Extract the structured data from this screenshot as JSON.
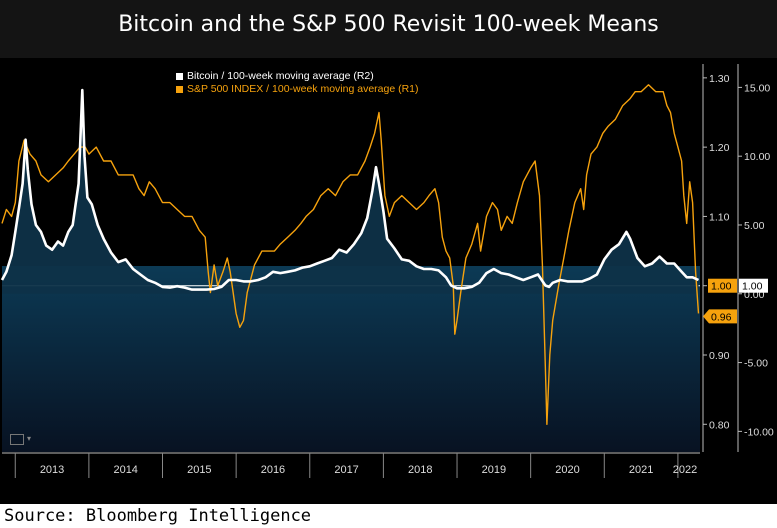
{
  "title": "Bitcoin and the S&P 500 Revisit 100-week Means",
  "source": "Source: Bloomberg Intelligence",
  "chart_data": {
    "type": "line",
    "title": "Bitcoin and the S&P 500 Revisit 100-week Means",
    "x_labels": [
      "2013",
      "2014",
      "2015",
      "2016",
      "2017",
      "2018",
      "2019",
      "2020",
      "2021",
      "2022"
    ],
    "xlim": [
      2012.82,
      2022.3
    ],
    "right_axis_inner": {
      "label": "R1",
      "ticks": [
        1.3,
        1.2,
        1.1,
        1.0,
        0.9,
        0.8
      ],
      "tick_labels": [
        "1.30",
        "1.20",
        "1.10",
        "1.00",
        "0.90",
        "0.80"
      ],
      "ylim": [
        0.76,
        1.32
      ]
    },
    "right_axis_outer": {
      "label": "R2",
      "ticks": [
        15,
        10,
        5,
        0,
        -5,
        -10
      ],
      "tick_labels": [
        "15.00",
        "10.00",
        "5.00",
        "0.00",
        "-5.00",
        "-10.00"
      ],
      "ylim": [
        -11.5,
        16.7
      ]
    },
    "series": [
      {
        "name": "Bitcoin / 100-week moving average (R2)",
        "axis": "R2",
        "color": "#ffffff",
        "fill": "#0e3148",
        "last_value_label": "1.00",
        "points": [
          [
            2012.82,
            1.0
          ],
          [
            2012.88,
            1.6
          ],
          [
            2012.95,
            2.8
          ],
          [
            2013.0,
            4.5
          ],
          [
            2013.05,
            6.2
          ],
          [
            2013.1,
            8.0
          ],
          [
            2013.14,
            11.2
          ],
          [
            2013.17,
            9.0
          ],
          [
            2013.22,
            6.5
          ],
          [
            2013.28,
            5.0
          ],
          [
            2013.35,
            4.5
          ],
          [
            2013.42,
            3.5
          ],
          [
            2013.5,
            3.2
          ],
          [
            2013.58,
            3.8
          ],
          [
            2013.65,
            3.5
          ],
          [
            2013.72,
            4.5
          ],
          [
            2013.78,
            5.0
          ],
          [
            2013.82,
            6.5
          ],
          [
            2013.86,
            8.0
          ],
          [
            2013.89,
            12.0
          ],
          [
            2013.91,
            14.8
          ],
          [
            2013.94,
            10.0
          ],
          [
            2013.98,
            7.0
          ],
          [
            2014.04,
            6.5
          ],
          [
            2014.12,
            5.0
          ],
          [
            2014.2,
            4.0
          ],
          [
            2014.3,
            3.0
          ],
          [
            2014.4,
            2.3
          ],
          [
            2014.5,
            2.5
          ],
          [
            2014.6,
            1.8
          ],
          [
            2014.7,
            1.4
          ],
          [
            2014.8,
            1.0
          ],
          [
            2014.9,
            0.8
          ],
          [
            2015.0,
            0.5
          ],
          [
            2015.1,
            0.45
          ],
          [
            2015.2,
            0.55
          ],
          [
            2015.3,
            0.45
          ],
          [
            2015.4,
            0.3
          ],
          [
            2015.5,
            0.3
          ],
          [
            2015.6,
            0.3
          ],
          [
            2015.7,
            0.35
          ],
          [
            2015.8,
            0.5
          ],
          [
            2015.9,
            1.0
          ],
          [
            2016.0,
            1.0
          ],
          [
            2016.1,
            0.9
          ],
          [
            2016.2,
            0.9
          ],
          [
            2016.3,
            1.0
          ],
          [
            2016.4,
            1.2
          ],
          [
            2016.5,
            1.6
          ],
          [
            2016.6,
            1.5
          ],
          [
            2016.7,
            1.6
          ],
          [
            2016.8,
            1.7
          ],
          [
            2016.9,
            1.9
          ],
          [
            2017.0,
            2.0
          ],
          [
            2017.1,
            2.2
          ],
          [
            2017.2,
            2.4
          ],
          [
            2017.3,
            2.6
          ],
          [
            2017.4,
            3.2
          ],
          [
            2017.5,
            3.0
          ],
          [
            2017.6,
            3.6
          ],
          [
            2017.7,
            4.4
          ],
          [
            2017.78,
            5.5
          ],
          [
            2017.85,
            7.5
          ],
          [
            2017.9,
            9.2
          ],
          [
            2017.94,
            8.0
          ],
          [
            2018.0,
            6.0
          ],
          [
            2018.05,
            4.0
          ],
          [
            2018.15,
            3.3
          ],
          [
            2018.25,
            2.5
          ],
          [
            2018.35,
            2.4
          ],
          [
            2018.45,
            2.0
          ],
          [
            2018.55,
            1.8
          ],
          [
            2018.65,
            1.8
          ],
          [
            2018.75,
            1.7
          ],
          [
            2018.85,
            1.2
          ],
          [
            2018.92,
            0.6
          ],
          [
            2019.0,
            0.4
          ],
          [
            2019.1,
            0.4
          ],
          [
            2019.2,
            0.5
          ],
          [
            2019.3,
            0.8
          ],
          [
            2019.4,
            1.5
          ],
          [
            2019.5,
            1.8
          ],
          [
            2019.6,
            1.5
          ],
          [
            2019.7,
            1.4
          ],
          [
            2019.8,
            1.2
          ],
          [
            2019.9,
            1.0
          ],
          [
            2020.0,
            1.2
          ],
          [
            2020.1,
            1.4
          ],
          [
            2020.2,
            0.6
          ],
          [
            2020.25,
            0.5
          ],
          [
            2020.3,
            0.8
          ],
          [
            2020.4,
            1.0
          ],
          [
            2020.5,
            0.9
          ],
          [
            2020.6,
            0.9
          ],
          [
            2020.7,
            0.9
          ],
          [
            2020.8,
            1.1
          ],
          [
            2020.9,
            1.4
          ],
          [
            2021.0,
            2.5
          ],
          [
            2021.1,
            3.2
          ],
          [
            2021.2,
            3.6
          ],
          [
            2021.3,
            4.5
          ],
          [
            2021.35,
            4.0
          ],
          [
            2021.45,
            2.6
          ],
          [
            2021.55,
            2.0
          ],
          [
            2021.65,
            2.2
          ],
          [
            2021.75,
            2.7
          ],
          [
            2021.85,
            2.2
          ],
          [
            2021.95,
            2.2
          ],
          [
            2022.05,
            1.6
          ],
          [
            2022.12,
            1.2
          ],
          [
            2022.2,
            1.2
          ],
          [
            2022.28,
            1.0
          ]
        ]
      },
      {
        "name": "S&P 500 INDEX / 100-week moving average (R1)",
        "axis": "R1",
        "color": "#f6a20d",
        "last_value_label": "0.96",
        "points": [
          [
            2012.82,
            1.09
          ],
          [
            2012.88,
            1.11
          ],
          [
            2012.95,
            1.1
          ],
          [
            2013.0,
            1.12
          ],
          [
            2013.05,
            1.18
          ],
          [
            2013.12,
            1.21
          ],
          [
            2013.2,
            1.19
          ],
          [
            2013.28,
            1.18
          ],
          [
            2013.35,
            1.16
          ],
          [
            2013.45,
            1.15
          ],
          [
            2013.55,
            1.16
          ],
          [
            2013.65,
            1.17
          ],
          [
            2013.72,
            1.18
          ],
          [
            2013.8,
            1.19
          ],
          [
            2013.88,
            1.2
          ],
          [
            2013.95,
            1.2
          ],
          [
            2014.0,
            1.19
          ],
          [
            2014.1,
            1.2
          ],
          [
            2014.2,
            1.18
          ],
          [
            2014.3,
            1.18
          ],
          [
            2014.4,
            1.16
          ],
          [
            2014.5,
            1.16
          ],
          [
            2014.6,
            1.16
          ],
          [
            2014.68,
            1.14
          ],
          [
            2014.75,
            1.13
          ],
          [
            2014.82,
            1.15
          ],
          [
            2014.9,
            1.14
          ],
          [
            2015.0,
            1.12
          ],
          [
            2015.1,
            1.12
          ],
          [
            2015.2,
            1.11
          ],
          [
            2015.3,
            1.1
          ],
          [
            2015.4,
            1.1
          ],
          [
            2015.5,
            1.08
          ],
          [
            2015.58,
            1.07
          ],
          [
            2015.62,
            1.02
          ],
          [
            2015.65,
            0.99
          ],
          [
            2015.7,
            1.03
          ],
          [
            2015.75,
            1.0
          ],
          [
            2015.82,
            1.02
          ],
          [
            2015.88,
            1.04
          ],
          [
            2015.92,
            1.02
          ],
          [
            2016.0,
            0.96
          ],
          [
            2016.05,
            0.94
          ],
          [
            2016.1,
            0.95
          ],
          [
            2016.15,
            0.99
          ],
          [
            2016.25,
            1.03
          ],
          [
            2016.35,
            1.05
          ],
          [
            2016.45,
            1.05
          ],
          [
            2016.52,
            1.05
          ],
          [
            2016.6,
            1.06
          ],
          [
            2016.7,
            1.07
          ],
          [
            2016.8,
            1.08
          ],
          [
            2016.88,
            1.09
          ],
          [
            2016.95,
            1.1
          ],
          [
            2017.05,
            1.11
          ],
          [
            2017.15,
            1.13
          ],
          [
            2017.25,
            1.14
          ],
          [
            2017.35,
            1.13
          ],
          [
            2017.45,
            1.15
          ],
          [
            2017.55,
            1.16
          ],
          [
            2017.65,
            1.16
          ],
          [
            2017.75,
            1.18
          ],
          [
            2017.82,
            1.2
          ],
          [
            2017.88,
            1.22
          ],
          [
            2017.94,
            1.25
          ],
          [
            2017.97,
            1.21
          ],
          [
            2018.02,
            1.13
          ],
          [
            2018.08,
            1.1
          ],
          [
            2018.15,
            1.12
          ],
          [
            2018.25,
            1.13
          ],
          [
            2018.35,
            1.12
          ],
          [
            2018.45,
            1.11
          ],
          [
            2018.55,
            1.12
          ],
          [
            2018.62,
            1.13
          ],
          [
            2018.7,
            1.14
          ],
          [
            2018.75,
            1.12
          ],
          [
            2018.8,
            1.07
          ],
          [
            2018.85,
            1.05
          ],
          [
            2018.9,
            1.04
          ],
          [
            2018.95,
            1.0
          ],
          [
            2018.97,
            0.93
          ],
          [
            2019.0,
            0.95
          ],
          [
            2019.05,
            0.99
          ],
          [
            2019.12,
            1.04
          ],
          [
            2019.2,
            1.06
          ],
          [
            2019.28,
            1.09
          ],
          [
            2019.32,
            1.05
          ],
          [
            2019.4,
            1.1
          ],
          [
            2019.48,
            1.12
          ],
          [
            2019.55,
            1.11
          ],
          [
            2019.6,
            1.08
          ],
          [
            2019.68,
            1.1
          ],
          [
            2019.75,
            1.09
          ],
          [
            2019.82,
            1.12
          ],
          [
            2019.9,
            1.15
          ],
          [
            2020.0,
            1.17
          ],
          [
            2020.06,
            1.18
          ],
          [
            2020.12,
            1.13
          ],
          [
            2020.16,
            1.03
          ],
          [
            2020.2,
            0.88
          ],
          [
            2020.22,
            0.8
          ],
          [
            2020.26,
            0.9
          ],
          [
            2020.3,
            0.95
          ],
          [
            2020.38,
            1.0
          ],
          [
            2020.45,
            1.04
          ],
          [
            2020.52,
            1.08
          ],
          [
            2020.6,
            1.12
          ],
          [
            2020.68,
            1.14
          ],
          [
            2020.72,
            1.11
          ],
          [
            2020.76,
            1.16
          ],
          [
            2020.82,
            1.19
          ],
          [
            2020.9,
            1.2
          ],
          [
            2020.98,
            1.22
          ],
          [
            2021.05,
            1.23
          ],
          [
            2021.15,
            1.24
          ],
          [
            2021.25,
            1.26
          ],
          [
            2021.35,
            1.27
          ],
          [
            2021.42,
            1.28
          ],
          [
            2021.5,
            1.28
          ],
          [
            2021.6,
            1.29
          ],
          [
            2021.7,
            1.28
          ],
          [
            2021.8,
            1.28
          ],
          [
            2021.85,
            1.26
          ],
          [
            2021.9,
            1.25
          ],
          [
            2021.95,
            1.22
          ],
          [
            2022.0,
            1.2
          ],
          [
            2022.05,
            1.18
          ],
          [
            2022.08,
            1.13
          ],
          [
            2022.12,
            1.09
          ],
          [
            2022.16,
            1.15
          ],
          [
            2022.2,
            1.12
          ],
          [
            2022.24,
            1.02
          ],
          [
            2022.28,
            0.96
          ]
        ]
      }
    ]
  }
}
